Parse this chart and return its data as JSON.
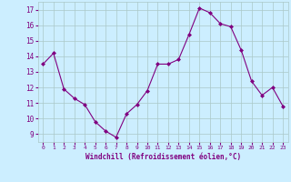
{
  "x": [
    0,
    1,
    2,
    3,
    4,
    5,
    6,
    7,
    8,
    9,
    10,
    11,
    12,
    13,
    14,
    15,
    16,
    17,
    18,
    19,
    20,
    21,
    22,
    23
  ],
  "y": [
    13.5,
    14.2,
    11.9,
    11.3,
    10.9,
    9.8,
    9.2,
    8.8,
    10.3,
    10.9,
    11.8,
    13.5,
    13.5,
    13.8,
    15.4,
    17.1,
    16.8,
    16.1,
    15.9,
    14.4,
    12.4,
    11.5,
    12.0,
    10.8
  ],
  "line_color": "#800080",
  "marker": "D",
  "marker_size": 2,
  "bg_color": "#cceeff",
  "grid_color": "#aac8c8",
  "xlabel": "Windchill (Refroidissement éolien,°C)",
  "xlim": [
    -0.5,
    23.5
  ],
  "ylim": [
    8.5,
    17.5
  ],
  "yticks": [
    9,
    10,
    11,
    12,
    13,
    14,
    15,
    16,
    17
  ],
  "xticks": [
    0,
    1,
    2,
    3,
    4,
    5,
    6,
    7,
    8,
    9,
    10,
    11,
    12,
    13,
    14,
    15,
    16,
    17,
    18,
    19,
    20,
    21,
    22,
    23
  ]
}
